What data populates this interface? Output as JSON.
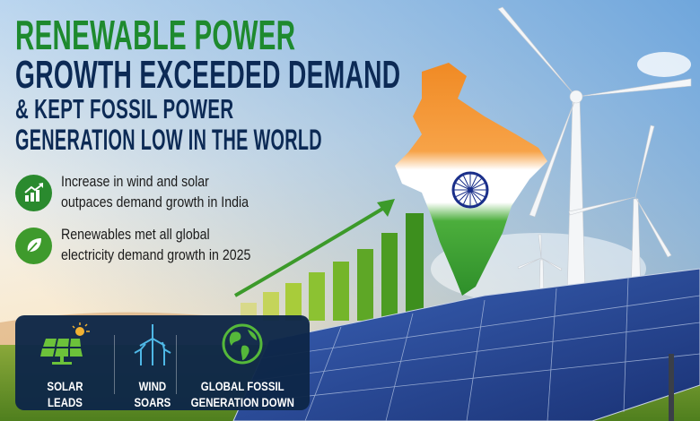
{
  "headline": {
    "line1": "RENEWABLE POWER",
    "line2": "GROWTH EXCEEDED DEMAND",
    "line3": "& KEPT FOSSIL POWER",
    "line4": "GENERATION LOW IN THE WORLD"
  },
  "bullets": [
    {
      "icon": "growth-chart-icon",
      "line1": "Increase in wind and solar",
      "line2": "outpaces demand growth in India"
    },
    {
      "icon": "leaf-icon",
      "line1": "Renewables met all global",
      "line2": "electricity demand growth in 2025"
    }
  ],
  "panel": {
    "items": [
      {
        "icon": "solar-panel-icon",
        "line1": "SOLAR",
        "line2": "LEADS"
      },
      {
        "icon": "wind-turbine-icon",
        "line1": "WIND",
        "line2": "SOARS"
      },
      {
        "icon": "globe-icon",
        "line1": "GLOBAL FOSSIL",
        "line2": "GENERATION DOWN"
      }
    ]
  },
  "colors": {
    "green": "#1e8a2e",
    "navy": "#0c2a55",
    "panel": "#0e2648",
    "saffron": "#f28c28"
  }
}
